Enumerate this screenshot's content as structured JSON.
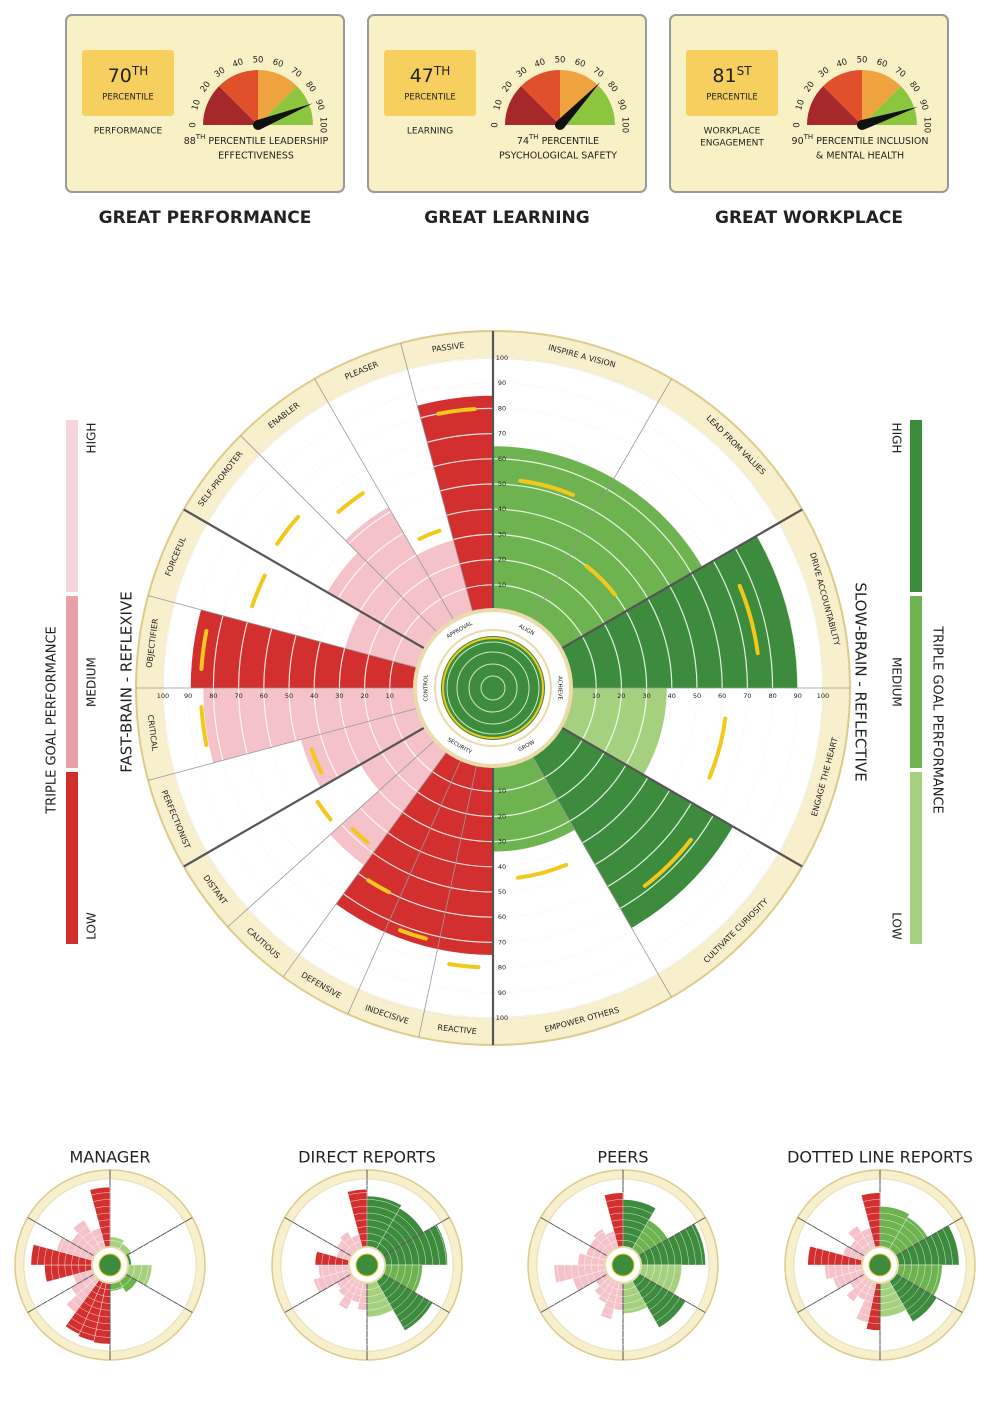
{
  "chart_data": [
    {
      "type": "gauge",
      "title": "GREAT PERFORMANCE",
      "badge_value": 70,
      "badge_suffix": "TH",
      "badge_label": "PERCENTILE",
      "badge_caption": [
        "PERFORMANCE"
      ],
      "value": 88,
      "value_suffix": "TH",
      "caption_lines": [
        "PERCENTILE LEADERSHIP",
        "EFFECTIVENESS"
      ],
      "ticks": [
        0,
        10,
        20,
        30,
        40,
        50,
        60,
        70,
        80,
        90,
        100
      ],
      "band_colors": [
        "#a7282b",
        "#e0512b",
        "#efa33e",
        "#8cc63f"
      ]
    },
    {
      "type": "gauge",
      "title": "GREAT LEARNING",
      "badge_value": 47,
      "badge_suffix": "TH",
      "badge_label": "PERCENTILE",
      "badge_caption": [
        "LEARNING"
      ],
      "value": 74,
      "value_suffix": "TH",
      "caption_lines": [
        "PERCENTILE",
        "PSYCHOLOGICAL SAFETY"
      ],
      "ticks": [
        0,
        10,
        20,
        30,
        40,
        50,
        60,
        70,
        80,
        90,
        100
      ],
      "band_colors": [
        "#a7282b",
        "#e0512b",
        "#efa33e",
        "#8cc63f"
      ]
    },
    {
      "type": "gauge",
      "title": "GREAT WORKPLACE",
      "badge_value": 81,
      "badge_suffix": "ST",
      "badge_label": "PERCENTILE",
      "badge_caption": [
        "WORKPLACE",
        "ENGAGEMENT"
      ],
      "value": 90,
      "value_suffix": "TH",
      "caption_lines": [
        "PERCENTILE INCLUSION",
        "& MENTAL HEALTH"
      ],
      "ticks": [
        0,
        10,
        20,
        30,
        40,
        50,
        60,
        70,
        80,
        90,
        100
      ],
      "band_colors": [
        "#a7282b",
        "#e0512b",
        "#efa33e",
        "#8cc63f"
      ]
    },
    {
      "type": "polar",
      "lim": [
        0,
        100
      ],
      "ticks": [
        10,
        20,
        30,
        40,
        50,
        60,
        70,
        80,
        90,
        100
      ],
      "norm_color": "#f2c81b",
      "groups": [
        {
          "label": "ALIGN",
          "sectors": [
            {
              "label": "INSPIRE A VISION",
              "value": 65,
              "norm": 52,
              "color": "#6db34f"
            },
            {
              "label": "LEAD FROM VALUES",
              "value": 65,
              "norm": 30,
              "color": "#6db34f"
            }
          ]
        },
        {
          "label": "ACHIEVE",
          "sectors": [
            {
              "label": "DRIVE ACCOUNTABILITY",
              "value": 90,
              "norm": 75,
              "color": "#3d8b3d"
            },
            {
              "label": "ENGAGE THE HEART",
              "value": 38,
              "norm": 62,
              "color": "#a5d17f"
            }
          ]
        },
        {
          "label": "GROW",
          "sectors": [
            {
              "label": "CULTIVATE CURIOSITY",
              "value": 79,
              "norm": 68,
              "color": "#3d8b3d"
            },
            {
              "label": "EMPOWER OTHERS",
              "value": 34,
              "norm": 45,
              "color": "#6db34f"
            }
          ]
        },
        {
          "label": "SECURITY",
          "sectors": [
            {
              "label": "REACTIVE",
              "value": 75,
              "norm": 80,
              "color": "#d32f2f"
            },
            {
              "label": "INDECISIVE",
              "value": 75,
              "norm": 72,
              "color": "#d32f2f"
            },
            {
              "label": "DEFENSIVE",
              "value": 75,
              "norm": 60,
              "color": "#d32f2f"
            },
            {
              "label": "CAUTIOUS",
              "value": 56,
              "norm": 48,
              "color": "#f4c2c8"
            },
            {
              "label": "DISTANT",
              "value": 30,
              "norm": 52,
              "color": "#f4c2c8"
            }
          ]
        },
        {
          "label": "CONTROL",
          "sectors": [
            {
              "label": "PERFECTIONIST",
              "value": 48,
              "norm": 45,
              "color": "#f4c2c8"
            },
            {
              "label": "CRITICAL",
              "value": 84,
              "norm": 85,
              "color": "#f4c2c8"
            },
            {
              "label": "OBJECTIFIER",
              "value": 89,
              "norm": 85,
              "color": "#d32f2f"
            },
            {
              "label": "FORCEFUL",
              "value": 30,
              "norm": 70,
              "color": "#f4c2c8"
            }
          ]
        },
        {
          "label": "APPROVAL",
          "sectors": [
            {
              "label": "SELF-PROMOTER",
              "value": 45,
              "norm": 72,
              "color": "#f4c2c8"
            },
            {
              "label": "ENABLER",
              "value": 52,
              "norm": 62,
              "color": "#f4c2c8"
            },
            {
              "label": "PLEASER",
              "value": 30,
              "norm": 35,
              "color": "#f4c2c8"
            },
            {
              "label": "PASSIVE",
              "value": 85,
              "norm": 80,
              "color": "#d32f2f"
            }
          ]
        }
      ],
      "left_legend": {
        "title": "TRIPLE GOAL PERFORMANCE",
        "levels": [
          "HIGH",
          "MEDIUM",
          "LOW"
        ],
        "colors": [
          "#f6d5da",
          "#e8a0a9",
          "#d32f2f"
        ],
        "label": "FAST-BRAIN - REFLEXIVE",
        "text_color": "#d32f2f"
      },
      "right_legend": {
        "title": "TRIPLE GOAL PERFORMANCE",
        "levels": [
          "HIGH",
          "MEDIUM",
          "LOW"
        ],
        "colors": [
          "#3d8b3d",
          "#6db34f",
          "#a5d17f"
        ],
        "label": "SLOW-BRAIN - REFLECTIVE",
        "text_color": "#4f9d4f"
      }
    },
    {
      "type": "mini-polar",
      "title": "MANAGER",
      "values": [
        15,
        10,
        5,
        35,
        20,
        12,
        90,
        88,
        85,
        60,
        40,
        30,
        70,
        90,
        55,
        40,
        50,
        30,
        88
      ],
      "colors": [
        "#a5d17f",
        "#a5d17f",
        "#3d8b3d",
        "#a5d17f",
        "#6db34f",
        "#6db34f",
        "#d32f2f",
        "#d32f2f",
        "#d32f2f",
        "#f4c2c8",
        "#f4c2c8",
        "#f4c2c8",
        "#d32f2f",
        "#d32f2f",
        "#f4c2c8",
        "#f4c2c8",
        "#f4c2c8",
        "#f4c2c8",
        "#d32f2f"
      ]
    },
    {
      "type": "mini-polar",
      "title": "DIRECT REPORTS",
      "values": [
        75,
        70,
        92,
        55,
        85,
        50,
        40,
        30,
        45,
        30,
        25,
        55,
        45,
        50,
        20,
        25,
        30,
        20,
        85
      ],
      "colors": [
        "#3d8b3d",
        "#3d8b3d",
        "#3d8b3d",
        "#6db34f",
        "#3d8b3d",
        "#a5d17f",
        "#f4c2c8",
        "#f4c2c8",
        "#f4c2c8",
        "#f4c2c8",
        "#f4c2c8",
        "#f4c2c8",
        "#f4c2c8",
        "#d32f2f",
        "#f4c2c8",
        "#f4c2c8",
        "#f4c2c8",
        "#f4c2c8",
        "#d32f2f"
      ]
    },
    {
      "type": "mini-polar",
      "title": "PEERS",
      "values": [
        70,
        50,
        95,
        60,
        80,
        45,
        40,
        55,
        35,
        30,
        20,
        50,
        75,
        40,
        30,
        30,
        35,
        25,
        80
      ],
      "colors": [
        "#3d8b3d",
        "#6db34f",
        "#3d8b3d",
        "#a5d17f",
        "#3d8b3d",
        "#a5d17f",
        "#f4c2c8",
        "#f4c2c8",
        "#f4c2c8",
        "#f4c2c8",
        "#f4c2c8",
        "#f4c2c8",
        "#f4c2c8",
        "#f4c2c8",
        "#f4c2c8",
        "#f4c2c8",
        "#f4c2c8",
        "#f4c2c8",
        "#d32f2f"
      ]
    },
    {
      "type": "mini-polar",
      "title": "DOTTED LINE REPORTS",
      "values": [
        60,
        55,
        90,
        65,
        70,
        50,
        70,
        60,
        30,
        40,
        25,
        45,
        55,
        80,
        30,
        25,
        40,
        30,
        80
      ],
      "colors": [
        "#6db34f",
        "#6db34f",
        "#3d8b3d",
        "#6db34f",
        "#3d8b3d",
        "#a5d17f",
        "#d32f2f",
        "#f4c2c8",
        "#f4c2c8",
        "#f4c2c8",
        "#f4c2c8",
        "#f4c2c8",
        "#f4c2c8",
        "#d32f2f",
        "#f4c2c8",
        "#f4c2c8",
        "#f4c2c8",
        "#f4c2c8",
        "#d32f2f"
      ]
    }
  ]
}
